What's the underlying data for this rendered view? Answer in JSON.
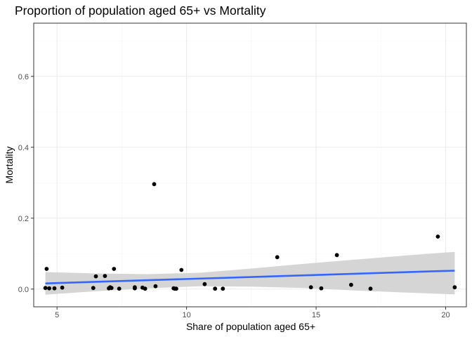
{
  "chart_data": {
    "type": "scatter",
    "title": "Proportion of population aged 65+ vs Mortality",
    "xlabel": "Share of population aged 65+",
    "ylabel": "Mortality",
    "xlim": [
      4.1,
      20.8
    ],
    "ylim": [
      -0.05,
      0.75
    ],
    "x_ticks": [
      5,
      10,
      15,
      20
    ],
    "y_ticks": [
      0.0,
      0.2,
      0.4,
      0.6
    ],
    "x_tick_labels": [
      "5",
      "10",
      "15",
      "20"
    ],
    "y_tick_labels": [
      "0.0",
      "0.2",
      "0.4",
      "0.6"
    ],
    "grid": true,
    "colors": {
      "points": "#000000",
      "trend_line": "#3366ff",
      "confidence_band": "#d3d3d3",
      "grid_major": "#ebebeb",
      "grid_minor": "#f5f5f5",
      "panel_border": "#333333"
    },
    "points": [
      {
        "x": 4.55,
        "y": 0.003
      },
      {
        "x": 4.6,
        "y": 0.057
      },
      {
        "x": 4.7,
        "y": 0.002
      },
      {
        "x": 4.9,
        "y": 0.002
      },
      {
        "x": 5.2,
        "y": 0.004
      },
      {
        "x": 6.4,
        "y": 0.003
      },
      {
        "x": 6.5,
        "y": 0.036
      },
      {
        "x": 6.85,
        "y": 0.037
      },
      {
        "x": 7.0,
        "y": 0.002
      },
      {
        "x": 7.05,
        "y": 0.005
      },
      {
        "x": 7.1,
        "y": 0.003
      },
      {
        "x": 7.2,
        "y": 0.057
      },
      {
        "x": 7.4,
        "y": 0.001
      },
      {
        "x": 8.0,
        "y": 0.002
      },
      {
        "x": 8.0,
        "y": 0.005
      },
      {
        "x": 8.3,
        "y": 0.004
      },
      {
        "x": 8.4,
        "y": 0.001
      },
      {
        "x": 8.75,
        "y": 0.296
      },
      {
        "x": 8.8,
        "y": 0.008
      },
      {
        "x": 9.5,
        "y": 0.002
      },
      {
        "x": 9.55,
        "y": 0.001
      },
      {
        "x": 9.6,
        "y": 0.001
      },
      {
        "x": 9.8,
        "y": 0.054
      },
      {
        "x": 10.7,
        "y": 0.014
      },
      {
        "x": 11.1,
        "y": 0.001
      },
      {
        "x": 11.4,
        "y": 0.001
      },
      {
        "x": 13.5,
        "y": 0.09
      },
      {
        "x": 14.8,
        "y": 0.005
      },
      {
        "x": 15.2,
        "y": 0.002
      },
      {
        "x": 15.8,
        "y": 0.096
      },
      {
        "x": 16.35,
        "y": 0.012
      },
      {
        "x": 17.1,
        "y": 0.001
      },
      {
        "x": 19.7,
        "y": 0.148
      },
      {
        "x": 20.35,
        "y": 0.005
      }
    ],
    "trend": {
      "x": [
        4.55,
        20.35
      ],
      "y": [
        0.016,
        0.052
      ]
    },
    "confidence_band": {
      "x": [
        4.55,
        6.5,
        8.5,
        10.5,
        12.5,
        14.5,
        16.5,
        18.5,
        20.35
      ],
      "lower": [
        -0.016,
        -0.006,
        0.002,
        0.008,
        0.007,
        0.003,
        -0.004,
        -0.01,
        -0.015
      ],
      "upper": [
        0.048,
        0.044,
        0.042,
        0.046,
        0.058,
        0.071,
        0.083,
        0.095,
        0.105
      ]
    }
  }
}
